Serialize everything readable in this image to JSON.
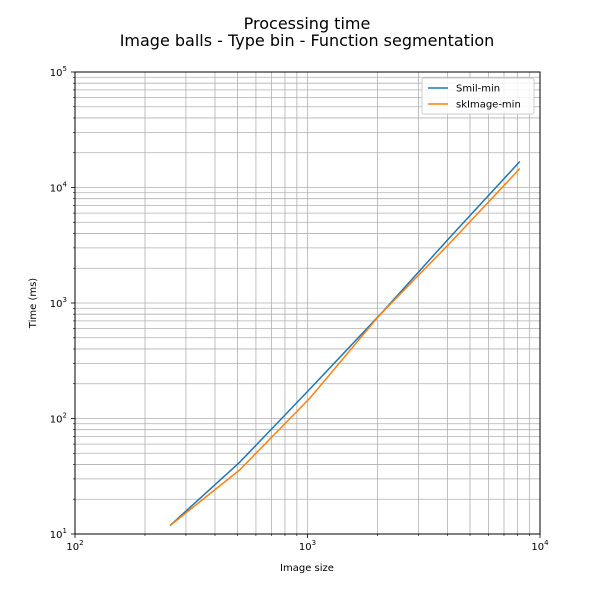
{
  "chart_data": {
    "type": "line",
    "title": "Processing time",
    "subtitle": "Image balls - Type bin - Function segmentation",
    "xlabel": "Image size",
    "ylabel": "Time (ms)",
    "xscale": "log",
    "yscale": "log",
    "xlim": [
      100,
      10000
    ],
    "ylim": [
      10,
      100000
    ],
    "grid": "on (major and minor)",
    "legend_position": "top-right",
    "x_tick_labels": [
      {
        "base": "10",
        "exp": "2"
      },
      {
        "base": "10",
        "exp": "3"
      },
      {
        "base": "10",
        "exp": "4"
      }
    ],
    "y_tick_labels": [
      {
        "base": "10",
        "exp": "1"
      },
      {
        "base": "10",
        "exp": "2"
      },
      {
        "base": "10",
        "exp": "3"
      },
      {
        "base": "10",
        "exp": "4"
      },
      {
        "base": "10",
        "exp": "5"
      }
    ],
    "x": [
      256,
      512,
      1024,
      2048,
      4096,
      8192
    ],
    "series": [
      {
        "name": "Smil-min",
        "color": "#1f77b4",
        "values": [
          11.8,
          42,
          180,
          790,
          3700,
          16800
        ]
      },
      {
        "name": "skImage-min",
        "color": "#ff7f0e",
        "values": [
          11.8,
          36,
          150,
          790,
          3300,
          14600
        ]
      }
    ]
  }
}
